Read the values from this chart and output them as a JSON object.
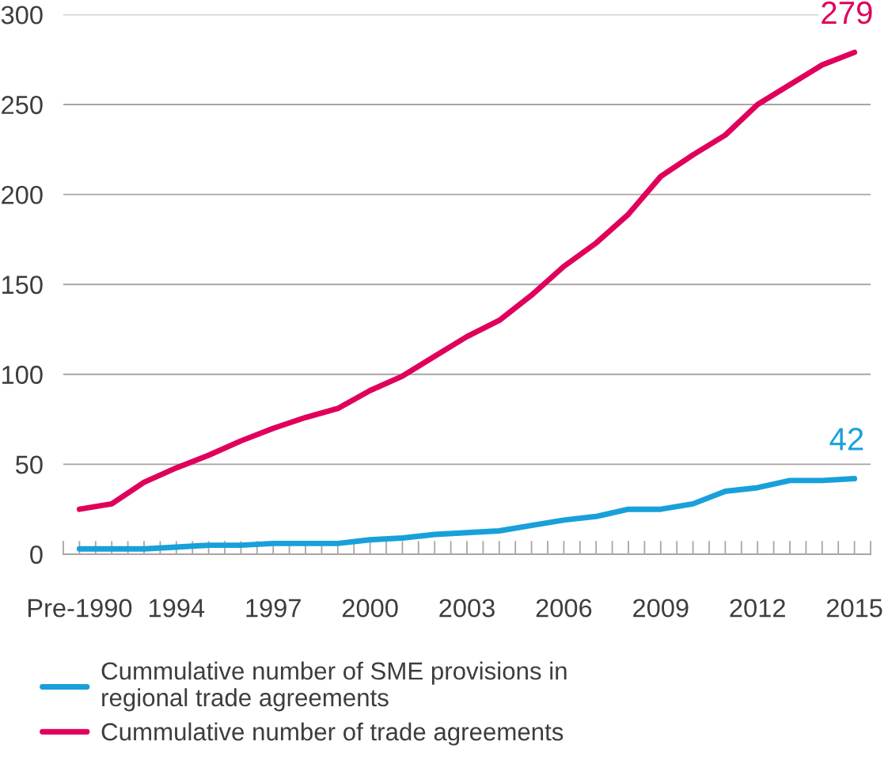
{
  "chart_data": {
    "type": "line",
    "categories": [
      "Pre-1990",
      null,
      null,
      "1994",
      null,
      null,
      "1997",
      null,
      null,
      "2000",
      null,
      null,
      "2003",
      null,
      null,
      "2006",
      null,
      null,
      "2009",
      null,
      null,
      "2012",
      null,
      null,
      "2015"
    ],
    "series": [
      {
        "name": "Cummulative number of SME provisions in\nregional trade agreements",
        "color": "#18a0da",
        "values": [
          3,
          3,
          3,
          4,
          5,
          5,
          6,
          6,
          6,
          8,
          9,
          11,
          12,
          13,
          16,
          19,
          21,
          25,
          25,
          28,
          35,
          37,
          41,
          41,
          42
        ],
        "value_labels": [
          null,
          null,
          null,
          null,
          null,
          null,
          null,
          null,
          null,
          null,
          null,
          null,
          null,
          null,
          null,
          null,
          null,
          null,
          null,
          null,
          null,
          null,
          null,
          null,
          "42"
        ]
      },
      {
        "name": "Cummulative number of trade agreements",
        "color": "#e0005b",
        "values": [
          25,
          28,
          40,
          48,
          55,
          63,
          70,
          76,
          81,
          91,
          99,
          110,
          121,
          130,
          144,
          160,
          173,
          189,
          210,
          222,
          233,
          250,
          261,
          272,
          279
        ],
        "value_labels": [
          null,
          null,
          null,
          null,
          null,
          null,
          null,
          null,
          null,
          null,
          null,
          null,
          null,
          null,
          null,
          null,
          null,
          null,
          null,
          null,
          null,
          null,
          null,
          null,
          "279"
        ]
      }
    ],
    "ylim": [
      0,
      300
    ],
    "yticks": [
      0,
      50,
      100,
      150,
      200,
      250,
      300
    ],
    "grid": "y",
    "legend": "bottom",
    "line_style": "solid"
  }
}
